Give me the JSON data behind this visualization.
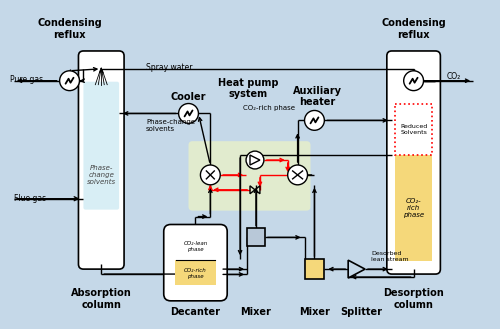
{
  "bg_color": "#c5d8e8",
  "col1_label": "Condensing\nreflux",
  "col2_label": "Cooler",
  "col3_label": "Heat pump\nsystem",
  "col4_label": "Auxiliary\nheater",
  "col5_label": "Condensing\nreflux",
  "abs_col_label": "Absorption\ncolumn",
  "dec_label": "Decanter",
  "mix1_label": "Mixer",
  "mix2_label": "Mixer",
  "split_label": "Splitter",
  "des_col_label": "Desorption\ncolumn",
  "pure_gas": "Pure gas",
  "flue_gas": "Flue gas",
  "spray_water": "Spray water",
  "phase_change_solvents": "Phase-change\nsolvents",
  "phase_change_inside": "Phase-\nchange\nsolvents",
  "co2_rich_phase_label": "CO₂-rich phase",
  "co2_label": "CO₂",
  "desorbed": "Desorbed\nlean stream",
  "reduced_solvents": "Reduced\nSolvents",
  "co2_rich_phase2": "CO₂-\nrich\nphase",
  "co2_lean": "CO₂-lean\nphase",
  "co2_rich_dec": "CO₂-rich\nphase"
}
